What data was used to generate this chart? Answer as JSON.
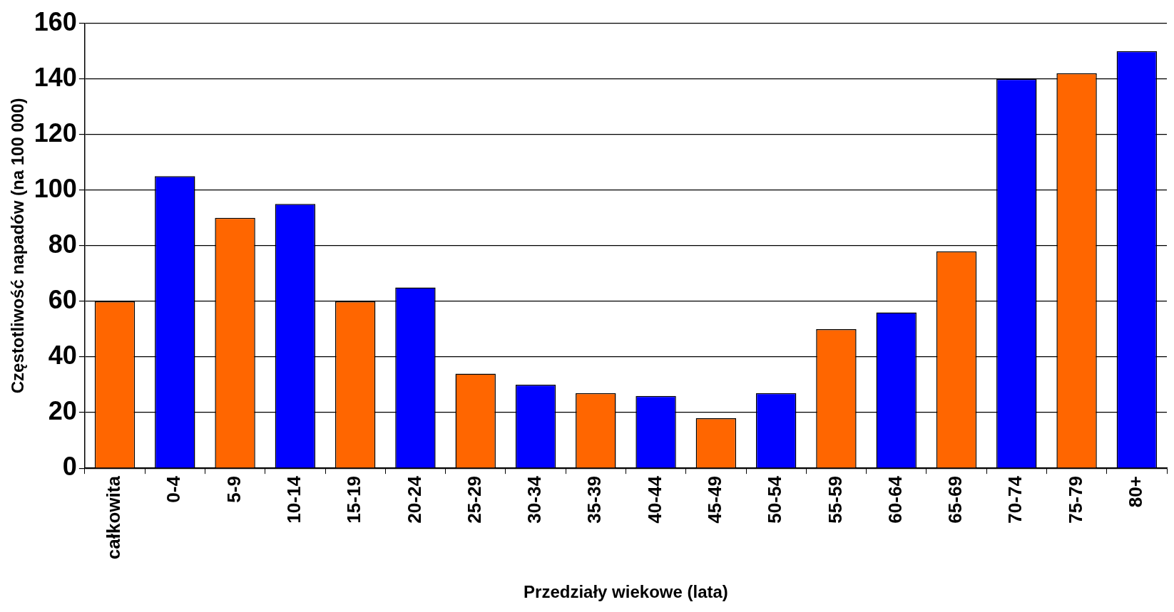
{
  "chart_data": {
    "type": "bar",
    "xlabel": "Przedziały wiekowe (lata)",
    "ylabel": "Częstotliwość napadów (na 100 000)",
    "categories": [
      "całkowita",
      "0-4",
      "5-9",
      "10-14",
      "15-19",
      "20-24",
      "25-29",
      "30-34",
      "35-39",
      "40-44",
      "45-49",
      "50-54",
      "55-59",
      "60-64",
      "65-69",
      "70-74",
      "75-79",
      "80+"
    ],
    "values": [
      60,
      105,
      90,
      95,
      60,
      65,
      34,
      30,
      27,
      26,
      18,
      27,
      50,
      56,
      78,
      140,
      142,
      150
    ],
    "colors": [
      "#ff6600",
      "#0000ff",
      "#ff6600",
      "#0000ff",
      "#ff6600",
      "#0000ff",
      "#ff6600",
      "#0000ff",
      "#ff6600",
      "#0000ff",
      "#ff6600",
      "#0000ff",
      "#ff6600",
      "#0000ff",
      "#ff6600",
      "#0000ff",
      "#ff6600",
      "#0000ff"
    ],
    "ylim": [
      0,
      160
    ],
    "yticks": [
      0,
      20,
      40,
      60,
      80,
      100,
      120,
      140,
      160
    ],
    "grid": "y",
    "legend": false
  }
}
